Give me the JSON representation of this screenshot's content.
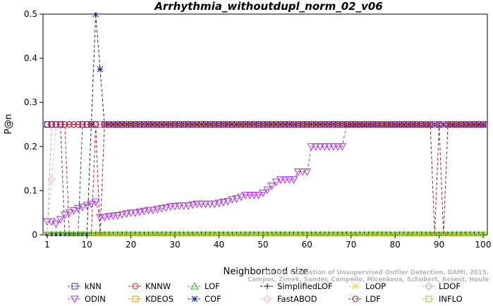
{
  "chart_data": {
    "type": "line",
    "title": "Arrhythmia_withoutdupl_norm_02_v06",
    "xlabel": "Neighborhood size",
    "ylabel": "P@n",
    "xlim": [
      1,
      100
    ],
    "ylim": [
      0,
      0.5
    ],
    "x_ticks": [
      1,
      10,
      20,
      30,
      40,
      50,
      60,
      70,
      80,
      90,
      100
    ],
    "y_ticks": [
      0.0,
      0.1,
      0.2,
      0.3,
      0.4,
      0.5
    ],
    "y_tick_labels": [
      "0",
      "0.1",
      "0.2",
      "0.3",
      "0.4",
      "0.5"
    ],
    "grid": false,
    "legend_position": "bottom",
    "credit": "Campos, Zimek, Sander, Campello, Micenkova, Schubert, Assent, Houle",
    "credit_line1": "On the Evaluation of Unsupervised Outlier Detection. DAMI, 2015.",
    "series": [
      {
        "name": "kNN",
        "color": "#2b39c8",
        "marker": "square",
        "points": [
          [
            1,
            0.25
          ],
          [
            4,
            0.25
          ],
          [
            5,
            0
          ],
          [
            8,
            0
          ],
          [
            9,
            0.25
          ],
          [
            100,
            0.25
          ]
        ]
      },
      {
        "name": "KNNW",
        "color": "#d22020",
        "marker": "circle",
        "points": [
          [
            1,
            0.25
          ],
          [
            5,
            0.25
          ],
          [
            6,
            0
          ],
          [
            11,
            0
          ],
          [
            12,
            0.25
          ],
          [
            100,
            0.25
          ]
        ]
      },
      {
        "name": "LOF",
        "color": "#22b822",
        "marker": "triangle",
        "points": [
          [
            1,
            0
          ],
          [
            100,
            0
          ]
        ]
      },
      {
        "name": "SimplifiedLOF",
        "color": "#000000",
        "marker": "plus",
        "points": [
          [
            1,
            0
          ],
          [
            100,
            0
          ]
        ]
      },
      {
        "name": "LoOP",
        "color": "#e0d000",
        "marker": "x",
        "points": [
          [
            1,
            0
          ],
          [
            100,
            0
          ]
        ]
      },
      {
        "name": "LDOF",
        "color": "#b0b0b0",
        "marker": "diamond",
        "points": [
          [
            1,
            0
          ],
          [
            2,
            0.25
          ],
          [
            100,
            0.25
          ]
        ]
      },
      {
        "name": "ODIN",
        "color": "#b030e0",
        "marker": "triangle-down",
        "points": [
          [
            1,
            0.03
          ],
          [
            2,
            0.03
          ],
          [
            3,
            0.025
          ],
          [
            4,
            0.035
          ],
          [
            5,
            0.045
          ],
          [
            6,
            0.05
          ],
          [
            7,
            0.055
          ],
          [
            8,
            0.06
          ],
          [
            9,
            0.063
          ],
          [
            10,
            0.067
          ],
          [
            11,
            0.07
          ],
          [
            12,
            0.075
          ],
          [
            13,
            0.04
          ],
          [
            14,
            0.04
          ],
          [
            15,
            0.042
          ],
          [
            16,
            0.043
          ],
          [
            17,
            0.044
          ],
          [
            18,
            0.046
          ],
          [
            19,
            0.048
          ],
          [
            20,
            0.05
          ],
          [
            21,
            0.05
          ],
          [
            22,
            0.052
          ],
          [
            23,
            0.054
          ],
          [
            24,
            0.056
          ],
          [
            25,
            0.056
          ],
          [
            26,
            0.058
          ],
          [
            27,
            0.06
          ],
          [
            28,
            0.062
          ],
          [
            29,
            0.064
          ],
          [
            30,
            0.065
          ],
          [
            31,
            0.066
          ],
          [
            32,
            0.066
          ],
          [
            33,
            0.066
          ],
          [
            34,
            0.068
          ],
          [
            35,
            0.07
          ],
          [
            36,
            0.07
          ],
          [
            37,
            0.07
          ],
          [
            38,
            0.07
          ],
          [
            39,
            0.07
          ],
          [
            40,
            0.072
          ],
          [
            41,
            0.074
          ],
          [
            42,
            0.076
          ],
          [
            43,
            0.08
          ],
          [
            44,
            0.082
          ],
          [
            45,
            0.086
          ],
          [
            46,
            0.09
          ],
          [
            47,
            0.09
          ],
          [
            48,
            0.09
          ],
          [
            49,
            0.09
          ],
          [
            50,
            0.095
          ],
          [
            51,
            0.102
          ],
          [
            52,
            0.111
          ],
          [
            53,
            0.12
          ],
          [
            54,
            0.125
          ],
          [
            55,
            0.125
          ],
          [
            56,
            0.125
          ],
          [
            57,
            0.125
          ],
          [
            58,
            0.143
          ],
          [
            59,
            0.143
          ],
          [
            60,
            0.143
          ],
          [
            61,
            0.2
          ],
          [
            62,
            0.2
          ],
          [
            63,
            0.2
          ],
          [
            64,
            0.2
          ],
          [
            65,
            0.2
          ],
          [
            66,
            0.2
          ],
          [
            67,
            0.2
          ],
          [
            68,
            0.2
          ],
          [
            69,
            0.25
          ],
          [
            100,
            0.25
          ]
        ]
      },
      {
        "name": "KDEOS",
        "color": "#e09a00",
        "marker": "square",
        "points": [
          [
            1,
            0
          ],
          [
            100,
            0
          ]
        ]
      },
      {
        "name": "COF",
        "color": "#102080",
        "marker": "star",
        "points": [
          [
            1,
            0
          ],
          [
            10,
            0
          ],
          [
            12,
            0.5
          ],
          [
            14,
            0.25
          ],
          [
            100,
            0.25
          ]
        ]
      },
      {
        "name": "FastABOD",
        "color": "#ffb0c0",
        "marker": "diamond",
        "points": [
          [
            1,
            0
          ],
          [
            3,
            0.25
          ],
          [
            100,
            0.25
          ]
        ]
      },
      {
        "name": "LDF",
        "color": "#a01830",
        "marker": "circle",
        "points": [
          [
            1,
            0.25
          ],
          [
            12,
            0.25
          ],
          [
            13,
            0
          ],
          [
            14,
            0.25
          ],
          [
            88,
            0.25
          ],
          [
            89,
            0
          ],
          [
            90,
            0.25
          ],
          [
            91,
            0
          ],
          [
            92,
            0.25
          ],
          [
            100,
            0.25
          ]
        ]
      },
      {
        "name": "INFLO",
        "color": "#8fd030",
        "marker": "square",
        "points": [
          [
            1,
            0
          ],
          [
            100,
            0
          ]
        ]
      }
    ]
  }
}
